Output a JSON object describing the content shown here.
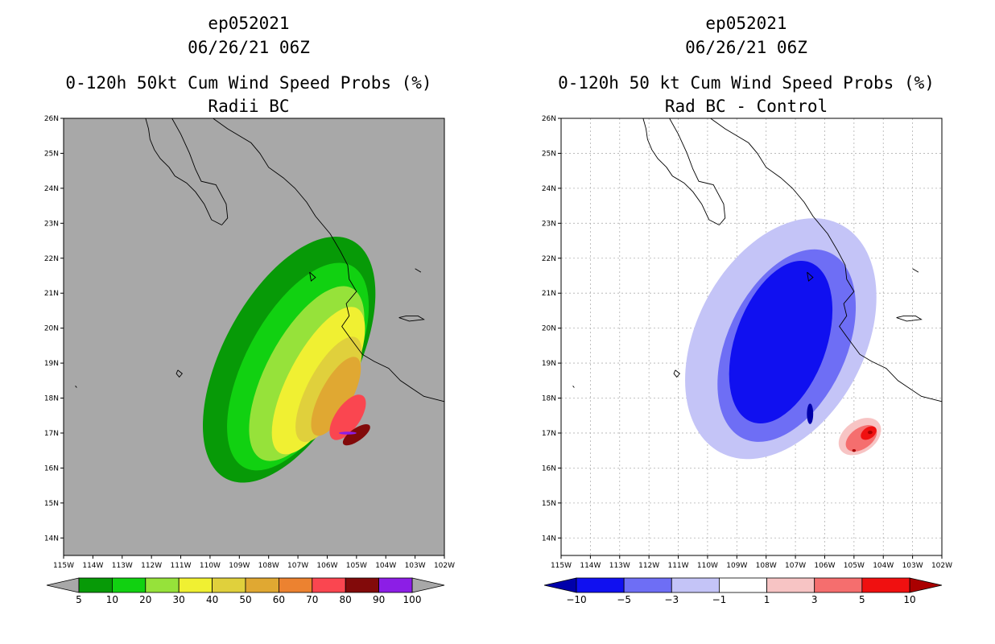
{
  "chart_data": [
    {
      "type": "filled-contour-map",
      "title_lines": [
        "ep052021",
        "06/26/21 06Z",
        "0-120h 50kt Cum Wind Speed Probs (%)",
        "Radii BC"
      ],
      "x_ticks": [
        "115W",
        "114W",
        "113W",
        "112W",
        "111W",
        "110W",
        "109W",
        "108W",
        "107W",
        "106W",
        "105W",
        "104W",
        "103W",
        "102W"
      ],
      "y_ticks": [
        "14N",
        "15N",
        "16N",
        "17N",
        "18N",
        "19N",
        "20N",
        "21N",
        "22N",
        "23N",
        "24N",
        "25N",
        "26N"
      ],
      "xlim": [
        -115,
        -102
      ],
      "ylim": [
        13.5,
        26
      ],
      "background": "#a8a8a8",
      "colorbar": {
        "labels": [
          "5",
          "10",
          "20",
          "30",
          "40",
          "50",
          "60",
          "70",
          "80",
          "90",
          "100"
        ],
        "colors": [
          "#079a07",
          "#11d111",
          "#96e23a",
          "#f0f032",
          "#e0d03c",
          "#e0a832",
          "#ec8230",
          "#fa4650",
          "#820a0a",
          "#8c1ee6"
        ]
      },
      "contours": [
        {
          "level": 5,
          "color": "#079a07",
          "center": [
            -107.3,
            19.1
          ],
          "rx": 4.6,
          "ry": 1.9,
          "angle": 62
        },
        {
          "level": 10,
          "color": "#11d111",
          "center": [
            -107.0,
            18.9
          ],
          "rx": 3.9,
          "ry": 1.5,
          "angle": 62
        },
        {
          "level": 20,
          "color": "#96e23a",
          "center": [
            -106.7,
            18.7
          ],
          "rx": 3.3,
          "ry": 1.15,
          "angle": 62
        },
        {
          "level": 30,
          "color": "#f0f032",
          "center": [
            -106.3,
            18.5
          ],
          "rx": 2.8,
          "ry": 0.85,
          "angle": 62
        },
        {
          "level": 40,
          "color": "#e0d03c",
          "center": [
            -105.95,
            18.25
          ],
          "rx": 2.0,
          "ry": 0.6,
          "angle": 62
        },
        {
          "level": 50,
          "color": "#e0a832",
          "center": [
            -105.7,
            18.05
          ],
          "rx": 1.5,
          "ry": 0.45,
          "angle": 62
        },
        {
          "level": 70,
          "color": "#fa4650",
          "center": [
            -105.3,
            17.45
          ],
          "rx": 0.9,
          "ry": 0.35,
          "angle": 55
        },
        {
          "level": 80,
          "color": "#820a0a",
          "center": [
            -105.0,
            16.95
          ],
          "rx": 0.55,
          "ry": 0.18,
          "angle": 35
        },
        {
          "level": 90,
          "color": "#8c1ee6",
          "center": [
            -105.3,
            17.0
          ],
          "rx": 0.3,
          "ry": 0.04,
          "angle": 0
        }
      ]
    },
    {
      "type": "filled-contour-map",
      "title_lines": [
        "ep052021",
        "06/26/21 06Z",
        "0-120h 50 kt Cum Wind Speed Probs (%)",
        "Rad BC - Control"
      ],
      "x_ticks": [
        "115W",
        "114W",
        "113W",
        "112W",
        "111W",
        "110W",
        "109W",
        "108W",
        "107W",
        "106W",
        "105W",
        "104W",
        "103W",
        "102W"
      ],
      "y_ticks": [
        "14N",
        "15N",
        "16N",
        "17N",
        "18N",
        "19N",
        "20N",
        "21N",
        "22N",
        "23N",
        "24N",
        "25N",
        "26N"
      ],
      "xlim": [
        -115,
        -102
      ],
      "ylim": [
        13.5,
        26
      ],
      "background": "#ffffff",
      "grid": true,
      "colorbar": {
        "labels": [
          "-10",
          "-5",
          "-3",
          "-1",
          "1",
          "3",
          "5",
          "10"
        ],
        "colors": [
          "#0000aa",
          "#1010f0",
          "#6e6ef5",
          "#c4c4f7",
          "#ffffff",
          "#f7c4c4",
          "#f56e6e",
          "#f01010",
          "#aa0000"
        ]
      },
      "contours": [
        {
          "level": -1,
          "color": "#c4c4f7",
          "center": [
            -107.5,
            19.7
          ],
          "rx": 4.4,
          "ry": 2.4,
          "angle": 62
        },
        {
          "level": -3,
          "color": "#6e6ef5",
          "center": [
            -107.3,
            19.5
          ],
          "rx": 3.5,
          "ry": 1.7,
          "angle": 65
        },
        {
          "level": -5,
          "color": "#1010f0",
          "center": [
            -107.5,
            19.6
          ],
          "rx": 2.9,
          "ry": 1.3,
          "angle": 70
        },
        {
          "level": -10,
          "color": "#0000aa",
          "center": [
            -106.5,
            17.55
          ],
          "rx": 0.35,
          "ry": 0.09,
          "angle": 90
        },
        {
          "level": 1,
          "color": "#f7c4c4",
          "center": [
            -104.8,
            16.9
          ],
          "rx": 0.8,
          "ry": 0.45,
          "angle": 35
        },
        {
          "level": 3,
          "color": "#f56e6e",
          "center": [
            -104.75,
            16.85
          ],
          "rx": 0.6,
          "ry": 0.3,
          "angle": 35
        },
        {
          "level": 5,
          "color": "#f01010",
          "center": [
            -104.5,
            17.0
          ],
          "rx": 0.3,
          "ry": 0.16,
          "angle": 35
        },
        {
          "level": 10,
          "color": "#aa0000",
          "center": [
            -104.45,
            17.02
          ],
          "rx": 0.08,
          "ry": 0.05,
          "angle": 0
        },
        {
          "level": 10,
          "color": "#aa0000",
          "center": [
            -105.0,
            16.5
          ],
          "rx": 0.06,
          "ry": 0.04,
          "angle": 0
        }
      ]
    }
  ],
  "coastline": {
    "baja_west": [
      [
        -112.2,
        26
      ],
      [
        -112.1,
        25.7
      ],
      [
        -112.05,
        25.4
      ],
      [
        -111.9,
        25.1
      ],
      [
        -111.7,
        24.85
      ],
      [
        -111.4,
        24.6
      ],
      [
        -111.2,
        24.35
      ],
      [
        -110.8,
        24.15
      ],
      [
        -110.5,
        23.9
      ],
      [
        -110.2,
        23.55
      ],
      [
        -109.95,
        23.1
      ],
      [
        -109.6,
        22.95
      ]
    ],
    "baja_east": [
      [
        -109.6,
        22.95
      ],
      [
        -109.4,
        23.15
      ],
      [
        -109.45,
        23.55
      ],
      [
        -109.8,
        24.1
      ],
      [
        -110.3,
        24.2
      ],
      [
        -110.5,
        24.55
      ],
      [
        -110.7,
        25.0
      ],
      [
        -111.0,
        25.55
      ],
      [
        -111.3,
        26.0
      ]
    ],
    "mainland": [
      [
        -109.9,
        26
      ],
      [
        -109.4,
        25.7
      ],
      [
        -109.1,
        25.55
      ],
      [
        -108.6,
        25.3
      ],
      [
        -108.3,
        25.0
      ],
      [
        -108.0,
        24.6
      ],
      [
        -107.5,
        24.3
      ],
      [
        -107.1,
        24.0
      ],
      [
        -106.7,
        23.6
      ],
      [
        -106.4,
        23.2
      ],
      [
        -105.9,
        22.7
      ],
      [
        -105.55,
        22.2
      ],
      [
        -105.3,
        21.8
      ],
      [
        -105.25,
        21.4
      ],
      [
        -105.0,
        21.05
      ],
      [
        -105.35,
        20.7
      ],
      [
        -105.25,
        20.35
      ],
      [
        -105.5,
        20.05
      ],
      [
        -105.2,
        19.7
      ],
      [
        -104.8,
        19.25
      ],
      [
        -104.4,
        19.05
      ],
      [
        -103.9,
        18.85
      ],
      [
        -103.5,
        18.5
      ],
      [
        -102.7,
        18.05
      ],
      [
        -102,
        17.9
      ]
    ],
    "tres_marias": [
      [
        -106.6,
        21.6
      ],
      [
        -106.4,
        21.45
      ],
      [
        -106.55,
        21.35
      ],
      [
        -106.6,
        21.6
      ]
    ],
    "socorro": [
      [
        -111.1,
        18.8
      ],
      [
        -110.95,
        18.7
      ],
      [
        -111.05,
        18.6
      ],
      [
        -111.15,
        18.7
      ],
      [
        -111.1,
        18.8
      ]
    ],
    "islet": [
      [
        -114.6,
        18.35
      ],
      [
        -114.55,
        18.3
      ]
    ],
    "lake_chapala": [
      [
        -103.55,
        20.3
      ],
      [
        -103.2,
        20.2
      ],
      [
        -102.7,
        20.25
      ],
      [
        -102.9,
        20.35
      ],
      [
        -103.3,
        20.35
      ],
      [
        -103.55,
        20.3
      ]
    ],
    "islas_marias_north": [
      [
        -103.0,
        21.7
      ],
      [
        -102.8,
        21.6
      ]
    ]
  }
}
